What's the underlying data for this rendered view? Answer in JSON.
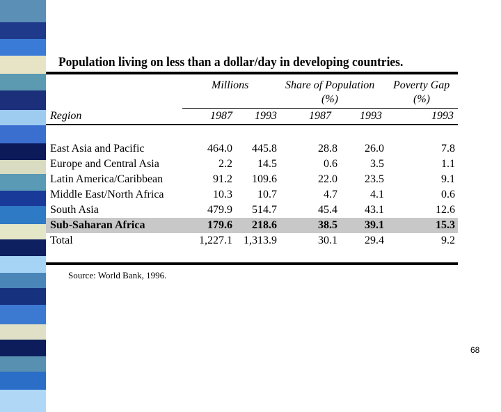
{
  "stripe_colors": [
    "#5b8fb5",
    "#1f3a8a",
    "#3b7bd8",
    "#e6e4c4",
    "#5b9ab0",
    "#1b2f7a",
    "#9ecbf0",
    "#3a6fcf",
    "#0c1a5a",
    "#d9dcc0",
    "#5a9ab5",
    "#1a3a9a",
    "#2e7ac4",
    "#e4e6c8",
    "#0e2060",
    "#a6d4f5",
    "#4a86b8",
    "#16317e",
    "#3c7ad2",
    "#dfe0c6",
    "#0d1d5c",
    "#5890b2",
    "#2b6ec8",
    "#b0d8f6"
  ],
  "slide": {
    "title": "Population living on less than a dollar/day in developing countries.",
    "source": "Source: World Bank, 1996.",
    "page_number": "68"
  },
  "table": {
    "group_headers": {
      "millions": "Millions",
      "share_line1": "Share of Population",
      "share_line2": "(%)",
      "gap_line1": "Poverty Gap",
      "gap_line2": "(%)"
    },
    "region_header": "Region",
    "years": [
      "1987",
      "1993",
      "1987",
      "1993",
      "1993"
    ],
    "rows": [
      {
        "region": "East Asia and Pacific",
        "values": [
          "464.0",
          "445.8",
          "28.8",
          "26.0",
          "7.8"
        ]
      },
      {
        "region": "Europe and Central Asia",
        "values": [
          "2.2",
          "14.5",
          "0.6",
          "3.5",
          "1.1"
        ]
      },
      {
        "region": "Latin America/Caribbean",
        "values": [
          "91.2",
          "109.6",
          "22.0",
          "23.5",
          "9.1"
        ]
      },
      {
        "region": "Middle East/North Africa",
        "values": [
          "10.3",
          "10.7",
          "4.7",
          "4.1",
          "0.6"
        ]
      },
      {
        "region": "South Asia",
        "values": [
          "479.9",
          "514.7",
          "45.4",
          "43.1",
          "12.6"
        ]
      },
      {
        "region": "Sub-Saharan Africa",
        "values": [
          "179.6",
          "218.6",
          "38.5",
          "39.1",
          "15.3"
        ]
      },
      {
        "region": "Total",
        "values": [
          "1,227.1",
          "1,313.9",
          "30.1",
          "29.4",
          "9.2"
        ]
      }
    ]
  }
}
